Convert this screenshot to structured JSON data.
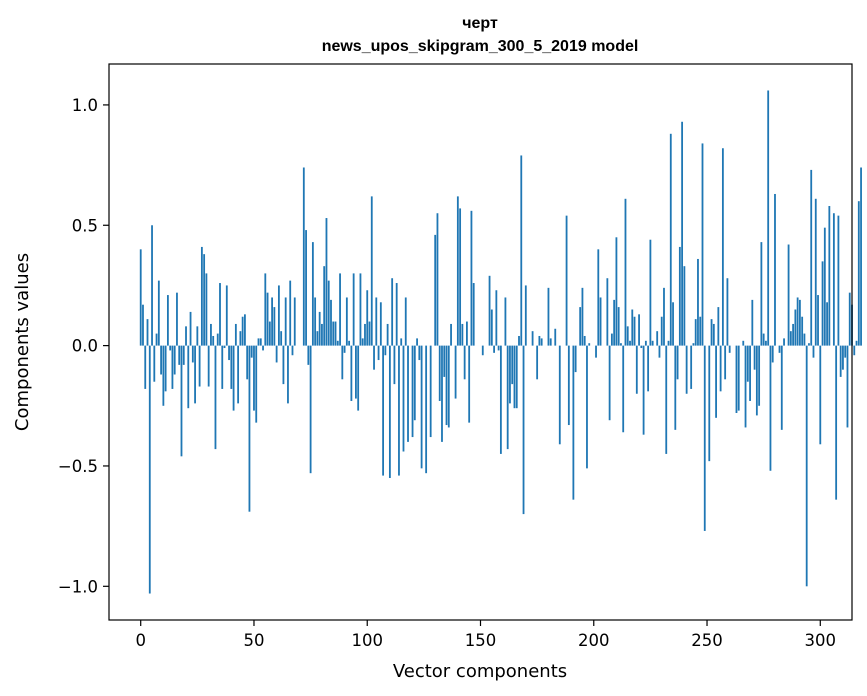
{
  "chart_data": {
    "type": "bar",
    "title": [
      "черт",
      "news_upos_skipgram_300_5_2019 model"
    ],
    "xlabel": "Vector components",
    "ylabel": "Components values",
    "xlim": [
      -14,
      314
    ],
    "ylim": [
      -1.14,
      1.17
    ],
    "xticks": [
      0,
      50,
      100,
      150,
      200,
      250,
      300
    ],
    "xtick_labels": [
      "0",
      "50",
      "100",
      "150",
      "200",
      "250",
      "300"
    ],
    "yticks": [
      -1.0,
      -0.5,
      0.0,
      0.5,
      1.0
    ],
    "ytick_labels": [
      "−1.0",
      "−0.5",
      "0.0",
      "0.5",
      "1.0"
    ],
    "grid": false,
    "bar_color": "#1f77b4",
    "values": [
      0.4,
      0.17,
      -0.18,
      0.11,
      -1.03,
      0.5,
      -0.15,
      0.05,
      0.27,
      -0.12,
      -0.25,
      -0.19,
      0.21,
      -0.02,
      -0.18,
      -0.12,
      0.22,
      -0.08,
      -0.46,
      -0.08,
      0.08,
      -0.26,
      0.14,
      -0.07,
      -0.24,
      0.08,
      -0.17,
      0.41,
      0.38,
      0.3,
      -0.17,
      0.09,
      0.04,
      -0.43,
      0.05,
      0.26,
      -0.18,
      -0.01,
      0.25,
      -0.06,
      -0.18,
      -0.27,
      0.09,
      -0.24,
      0.06,
      0.12,
      0.13,
      -0.14,
      -0.69,
      -0.05,
      -0.27,
      -0.32,
      0.03,
      0.03,
      -0.02,
      0.3,
      0.22,
      0.1,
      0.2,
      0.16,
      -0.07,
      0.25,
      0.06,
      -0.16,
      0.2,
      -0.24,
      0.27,
      -0.04,
      0.2,
      0.0,
      0.0,
      0.0,
      0.74,
      0.48,
      -0.08,
      -0.53,
      0.43,
      0.2,
      0.06,
      0.14,
      0.09,
      0.33,
      0.53,
      0.27,
      0.19,
      0.1,
      0.1,
      0.02,
      0.3,
      -0.14,
      -0.03,
      0.2,
      0.02,
      -0.23,
      0.3,
      -0.22,
      -0.27,
      0.3,
      0.03,
      0.09,
      0.23,
      0.1,
      0.62,
      -0.1,
      0.2,
      -0.06,
      0.18,
      -0.54,
      -0.04,
      0.09,
      -0.55,
      0.28,
      -0.16,
      0.26,
      -0.54,
      0.03,
      -0.44,
      0.2,
      -0.4,
      0.0,
      -0.38,
      -0.31,
      0.03,
      -0.06,
      -0.51,
      0.0,
      -0.53,
      0.0,
      -0.38,
      0.0,
      0.46,
      0.55,
      -0.23,
      -0.4,
      -0.13,
      -0.33,
      -0.34,
      0.09,
      0.0,
      -0.22,
      0.62,
      0.57,
      0.09,
      -0.14,
      0.1,
      -0.32,
      0.56,
      0.26,
      0.0,
      0.0,
      0.0,
      -0.04,
      0.0,
      0.0,
      0.29,
      0.15,
      -0.03,
      0.23,
      -0.02,
      -0.45,
      0.0,
      0.2,
      -0.43,
      -0.24,
      -0.16,
      -0.26,
      -0.26,
      0.04,
      0.79,
      -0.7,
      0.25,
      0.0,
      0.0,
      0.06,
      0.0,
      -0.14,
      0.04,
      0.03,
      0.0,
      0.0,
      0.24,
      0.03,
      0.0,
      0.07,
      0.0,
      -0.41,
      0.0,
      0.0,
      0.54,
      -0.33,
      0.0,
      -0.64,
      -0.11,
      0.0,
      0.16,
      0.24,
      0.04,
      -0.51,
      0.01,
      0.0,
      0.0,
      -0.05,
      0.4,
      0.2,
      0.0,
      0.0,
      0.28,
      -0.31,
      0.05,
      0.19,
      0.45,
      0.16,
      0.01,
      -0.36,
      0.61,
      0.08,
      0.02,
      0.15,
      0.12,
      -0.2,
      0.13,
      -0.01,
      -0.37,
      0.02,
      -0.19,
      0.44,
      0.02,
      0.0,
      0.06,
      -0.05,
      0.12,
      0.24,
      -0.45,
      0.02,
      0.88,
      0.18,
      -0.35,
      -0.14,
      0.41,
      0.93,
      0.33,
      -0.2,
      0.0,
      -0.18,
      0.01,
      0.11,
      0.36,
      0.12,
      0.84,
      -0.77,
      0.0,
      -0.48,
      0.11,
      0.09,
      -0.3,
      0.16,
      -0.19,
      0.82,
      -0.14,
      0.28,
      -0.03,
      0.0,
      0.0,
      -0.28,
      -0.27,
      0.0,
      0.02,
      -0.34,
      -0.15,
      -0.23,
      0.19,
      -0.1,
      -0.29,
      -0.25,
      0.43,
      0.05,
      0.02,
      1.06,
      -0.52,
      -0.07,
      0.63,
      0.0,
      -0.03,
      -0.35,
      0.03,
      0.0,
      0.42,
      0.06,
      0.09,
      0.15,
      0.2,
      0.19,
      0.12,
      0.05,
      -1.0,
      0.01,
      0.73,
      -0.05,
      0.61,
      0.21,
      -0.41,
      0.35,
      0.49,
      0.18,
      0.58,
      0.0,
      0.55,
      -0.64,
      0.54,
      -0.13,
      -0.1,
      -0.05,
      -0.34,
      0.22,
      0.17,
      -0.04,
      0.02,
      0.6,
      0.74,
      0.0
    ]
  }
}
